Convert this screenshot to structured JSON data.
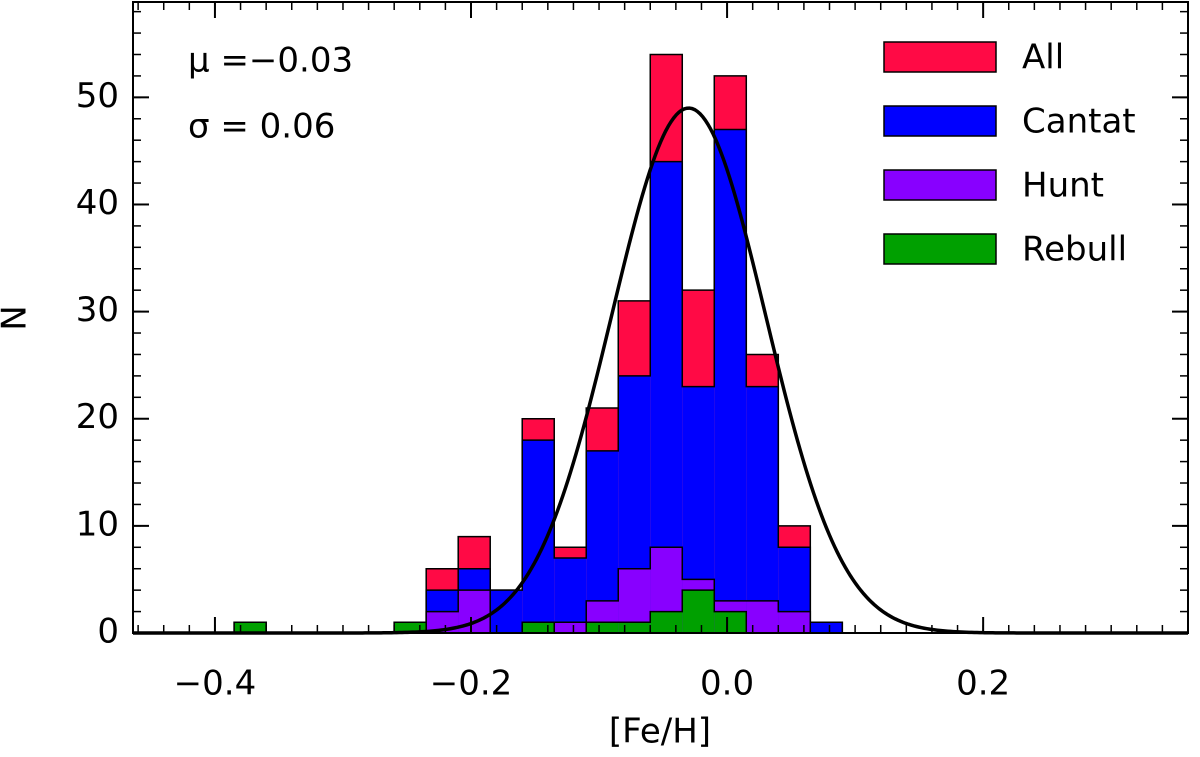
{
  "chart_data": {
    "type": "histogram",
    "xlabel": "[Fe/H]",
    "ylabel": "N",
    "annotations": [
      "μ =−0.03",
      "σ = 0.06"
    ],
    "bins": [
      -0.385,
      -0.36,
      -0.335,
      -0.31,
      -0.285,
      -0.26,
      -0.235,
      -0.21,
      -0.185,
      -0.16,
      -0.135,
      -0.11,
      -0.085,
      -0.06,
      -0.035,
      -0.01,
      0.015,
      0.04,
      0.065,
      0.09
    ],
    "series": [
      {
        "name": "All",
        "color": "#ff0a45",
        "values": [
          1,
          0,
          0,
          0,
          0,
          1,
          6,
          9,
          4,
          20,
          8,
          21,
          31,
          54,
          32,
          52,
          26,
          10,
          1
        ]
      },
      {
        "name": "Cantat",
        "color": "#0000ff",
        "values": [
          0,
          0,
          0,
          0,
          0,
          0,
          4,
          6,
          4,
          18,
          7,
          17,
          24,
          44,
          23,
          47,
          23,
          8,
          1
        ]
      },
      {
        "name": "Hunt",
        "color": "#8800ff",
        "values": [
          0,
          0,
          0,
          0,
          0,
          0,
          2,
          4,
          0,
          0,
          1,
          3,
          6,
          8,
          5,
          3,
          3,
          2,
          0
        ]
      },
      {
        "name": "Rebull",
        "color": "#00a000",
        "values": [
          1,
          0,
          0,
          0,
          0,
          1,
          0,
          0,
          0,
          1,
          0,
          1,
          1,
          2,
          4,
          2,
          0,
          0,
          0
        ]
      }
    ],
    "curve": {
      "mu": -0.03,
      "sigma": 0.06,
      "amplitude": 49
    },
    "xlim": [
      -0.464,
      0.36
    ],
    "ylim": [
      0,
      58.9
    ],
    "xticks": [
      {
        "value": -0.4,
        "label": "−0.4"
      },
      {
        "value": -0.2,
        "label": "−0.2"
      },
      {
        "value": 0,
        "label": "0.0"
      },
      {
        "value": 0.2,
        "label": "0.2"
      }
    ],
    "yticks": [
      0,
      10,
      20,
      30,
      40,
      50
    ],
    "legend": "upper right"
  }
}
